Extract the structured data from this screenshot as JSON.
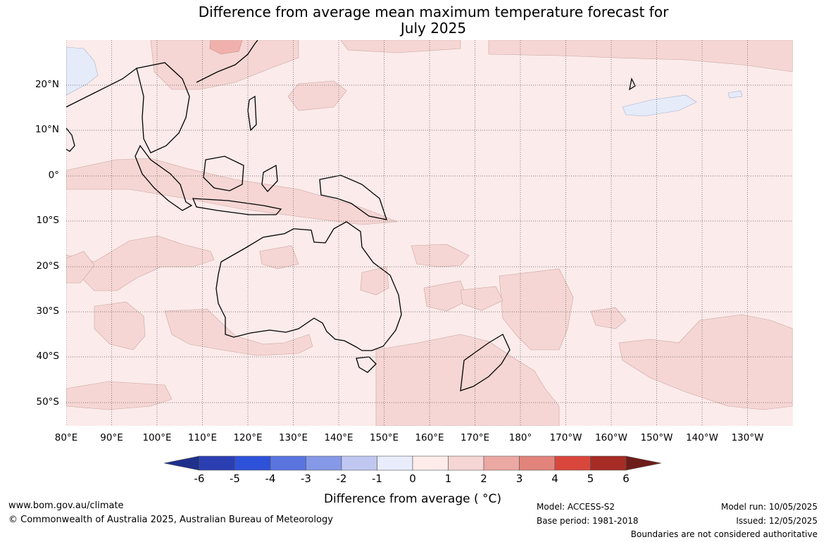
{
  "title": {
    "line1": "Difference from average mean maximum temperature forecast for",
    "line2": "July 2025"
  },
  "map": {
    "lat_ticks": [
      "20°N",
      "10°N",
      "0°",
      "10°S",
      "20°S",
      "30°S",
      "40°S",
      "50°S"
    ],
    "lon_ticks": [
      "80°E",
      "90°E",
      "100°E",
      "110°E",
      "120°E",
      "130°E",
      "140°E",
      "150°E",
      "160°E",
      "170°E",
      "180°",
      "170°W",
      "160°W",
      "150°W",
      "140°W",
      "130°W"
    ],
    "colors": {
      "background_anomaly": "#fbebea",
      "warm_anomaly": "#f5d6d4",
      "warmer_anomaly": "#f0b1ad",
      "cool_anomaly": "#e6ebfa",
      "coastline": "#000000",
      "grid": "#666666"
    }
  },
  "colorbar": {
    "ticks": [
      "-6",
      "-5",
      "-4",
      "-3",
      "-2",
      "-1",
      "0",
      "1",
      "2",
      "3",
      "4",
      "5",
      "6"
    ],
    "colors": [
      "#1e2f8c",
      "#2b3fb3",
      "#2d52d9",
      "#5a75e0",
      "#8699e8",
      "#c0c8f2",
      "#e9ecfb",
      "#fdecea",
      "#f5d6d4",
      "#eca8a3",
      "#e2847c",
      "#d9473c",
      "#a72c26",
      "#6d1d19"
    ],
    "label": "Difference from average ( °C)"
  },
  "footer": {
    "website": "www.bom.gov.au/climate",
    "copyright": "© Commonwealth of Australia 2025, Australian Bureau of Meteorology",
    "model": "Model: ACCESS-S2",
    "base_period": "Base period: 1981-2018",
    "model_run": "Model run: 10/05/2025",
    "issued": "Issued: 12/05/2025",
    "disclaimer": "Boundaries are not considered authoritative"
  }
}
